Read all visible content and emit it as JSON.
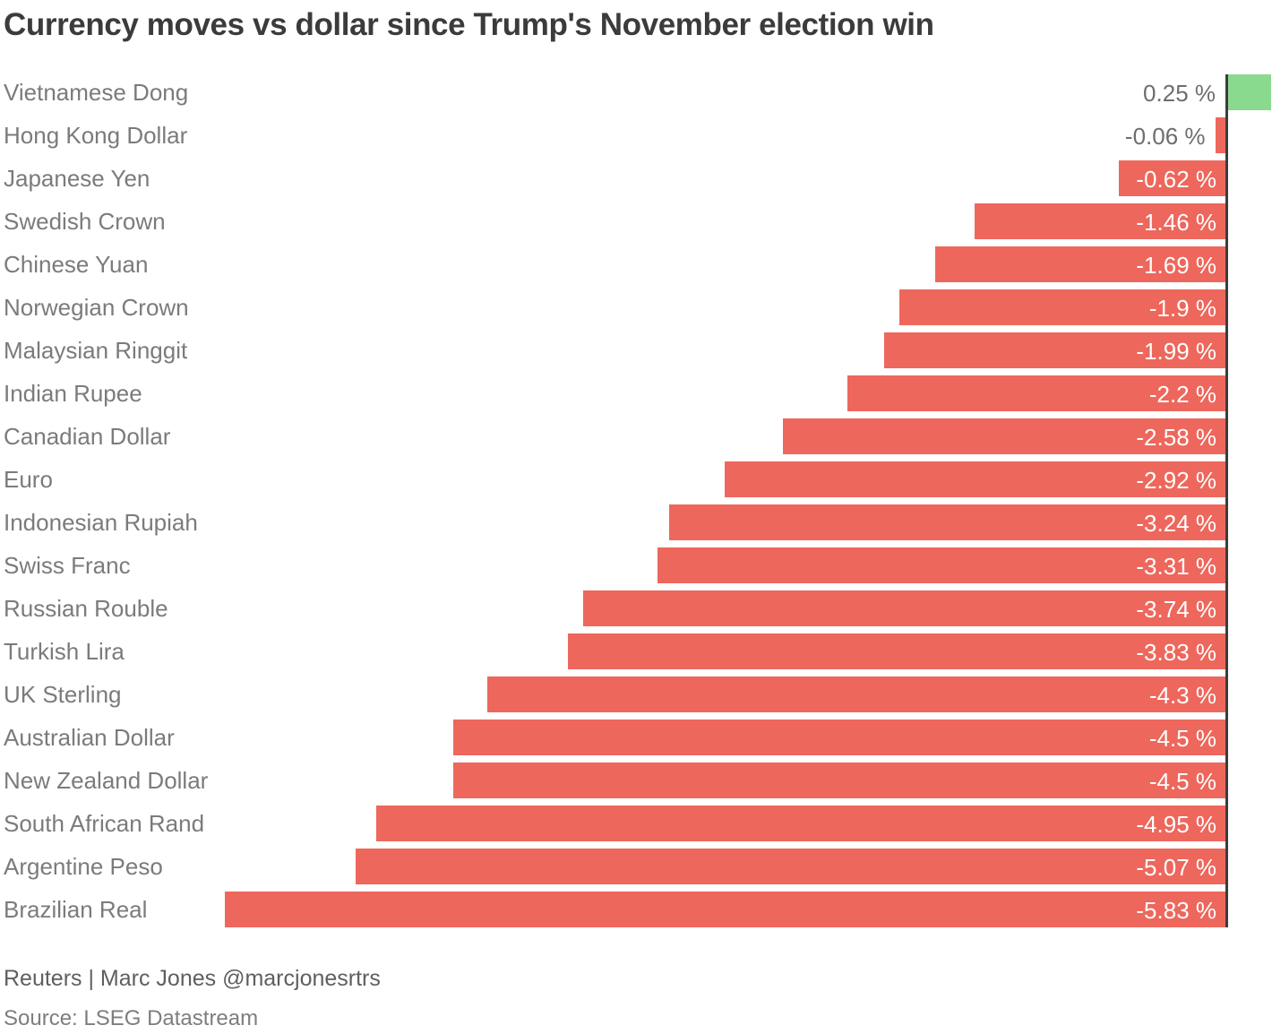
{
  "title": "Currency moves vs dollar since Trump's November election win",
  "footer": {
    "byline": "Reuters | Marc Jones @marcjonesrtrs",
    "source": "Source: LSEG Datastream"
  },
  "colors": {
    "positive_bar": "#89da8e",
    "negative_bar": "#ee675c",
    "axis": "#3c3c3c",
    "title_text": "#3b3b3b",
    "category_text": "#7b7b7b",
    "outside_value_text": "#6e6e6e",
    "inside_value_text": "#ffffff"
  },
  "chart_data": {
    "type": "bar",
    "orientation": "horizontal",
    "title": "Currency moves vs dollar since Trump's November election win",
    "xlabel": "",
    "ylabel": "",
    "xlim": [
      -6.0,
      0.3
    ],
    "grid": false,
    "legend": "none",
    "value_unit": "%",
    "baseline": 0,
    "categories": [
      "Vietnamese Dong",
      "Hong Kong Dollar",
      "Japanese Yen",
      "Swedish Crown",
      "Chinese Yuan",
      "Norwegian Crown",
      "Malaysian Ringgit",
      "Indian Rupee",
      "Canadian Dollar",
      "Euro",
      "Indonesian Rupiah",
      "Swiss Franc",
      "Russian Rouble",
      "Turkish Lira",
      "UK Sterling",
      "Australian Dollar",
      "New Zealand Dollar",
      "South African Rand",
      "Argentine Peso",
      "Brazilian Real"
    ],
    "values": [
      0.25,
      -0.06,
      -0.62,
      -1.46,
      -1.69,
      -1.9,
      -1.99,
      -2.2,
      -2.58,
      -2.92,
      -3.24,
      -3.31,
      -3.74,
      -3.83,
      -4.3,
      -4.5,
      -4.5,
      -4.95,
      -5.07,
      -5.83
    ],
    "value_labels": [
      "0.25 %",
      "-0.06 %",
      "-0.62 %",
      "-1.46 %",
      "-1.69 %",
      "-1.9 %",
      "-1.99 %",
      "-2.2 %",
      "-2.58 %",
      "-2.92 %",
      "-3.24 %",
      "-3.31 %",
      "-3.74 %",
      "-3.83 %",
      "-4.3 %",
      "-4.5 %",
      "-4.5 %",
      "-4.95 %",
      "-5.07 %",
      "-5.83 %"
    ]
  }
}
